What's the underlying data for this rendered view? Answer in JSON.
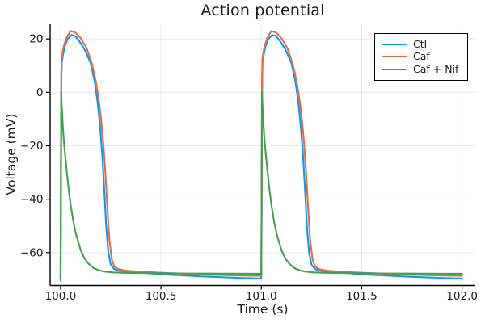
{
  "chart_data": {
    "type": "line",
    "title": "Action potential",
    "xlabel": "Time (s)",
    "ylabel": "Voltage (mV)",
    "xlim": [
      99.948,
      102.066
    ],
    "ylim": [
      -72.3,
      25.5
    ],
    "xticks": [
      100.0,
      100.5,
      101.0,
      101.5,
      102.0
    ],
    "xtick_labels": [
      "100.0",
      "100.5",
      "101.0",
      "101.5",
      "102.0"
    ],
    "yticks": [
      20,
      0,
      -20,
      -40,
      -60
    ],
    "ytick_labels": [
      "20",
      "0",
      "−20",
      "−40",
      "−60"
    ],
    "grid": true,
    "grid_color": "rgba(0,0,0,0.08)",
    "axis_color": "#000000",
    "text_color": "#1a1a1a",
    "legend": {
      "position": "top-right",
      "border_color": "#000000",
      "background": "#ffffff"
    },
    "series": [
      {
        "name": "Ctl",
        "color": "#009AFA",
        "points": [
          [
            100.0,
            -70.5
          ],
          [
            100.002,
            -35
          ],
          [
            100.004,
            4
          ],
          [
            100.006,
            11
          ],
          [
            100.012,
            14
          ],
          [
            100.02,
            17
          ],
          [
            100.035,
            20
          ],
          [
            100.055,
            21.5
          ],
          [
            100.075,
            21
          ],
          [
            100.095,
            19
          ],
          [
            100.12,
            16
          ],
          [
            100.15,
            11
          ],
          [
            100.17,
            4
          ],
          [
            100.185,
            -4
          ],
          [
            100.198,
            -14
          ],
          [
            100.208,
            -24
          ],
          [
            100.218,
            -37
          ],
          [
            100.228,
            -51
          ],
          [
            100.238,
            -60
          ],
          [
            100.25,
            -64.5
          ],
          [
            100.265,
            -66
          ],
          [
            100.285,
            -66.7
          ],
          [
            100.32,
            -67
          ],
          [
            100.4,
            -67.5
          ],
          [
            100.5,
            -68.1
          ],
          [
            100.6,
            -68.5
          ],
          [
            100.7,
            -68.9
          ],
          [
            100.8,
            -69.2
          ],
          [
            100.9,
            -69.5
          ],
          [
            100.999,
            -69.7
          ],
          [
            101.0,
            -69.7
          ],
          [
            101.002,
            -35
          ],
          [
            101.004,
            4
          ],
          [
            101.006,
            11
          ],
          [
            101.012,
            14
          ],
          [
            101.02,
            17
          ],
          [
            101.035,
            20
          ],
          [
            101.055,
            21.5
          ],
          [
            101.075,
            21
          ],
          [
            101.095,
            19
          ],
          [
            101.12,
            16
          ],
          [
            101.15,
            11
          ],
          [
            101.17,
            4
          ],
          [
            101.185,
            -4
          ],
          [
            101.198,
            -14
          ],
          [
            101.208,
            -24
          ],
          [
            101.218,
            -37
          ],
          [
            101.228,
            -51
          ],
          [
            101.238,
            -60
          ],
          [
            101.25,
            -64.5
          ],
          [
            101.265,
            -66
          ],
          [
            101.285,
            -66.7
          ],
          [
            101.32,
            -67
          ],
          [
            101.4,
            -67.5
          ],
          [
            101.5,
            -68.1
          ],
          [
            101.6,
            -68.5
          ],
          [
            101.7,
            -68.9
          ],
          [
            101.8,
            -69.2
          ],
          [
            101.9,
            -69.5
          ],
          [
            102.0,
            -69.7
          ]
        ]
      },
      {
        "name": "Caf",
        "color": "#E36E46",
        "points": [
          [
            100.0,
            -70.0
          ],
          [
            100.002,
            -30
          ],
          [
            100.004,
            7
          ],
          [
            100.006,
            13
          ],
          [
            100.015,
            17
          ],
          [
            100.03,
            20.5
          ],
          [
            100.05,
            23
          ],
          [
            100.075,
            22.3
          ],
          [
            100.1,
            20.3
          ],
          [
            100.13,
            16.5
          ],
          [
            100.155,
            11
          ],
          [
            100.175,
            4.5
          ],
          [
            100.19,
            -2.5
          ],
          [
            100.202,
            -10
          ],
          [
            100.213,
            -19
          ],
          [
            100.223,
            -30
          ],
          [
            100.233,
            -43
          ],
          [
            100.243,
            -55
          ],
          [
            100.255,
            -62.5
          ],
          [
            100.268,
            -65.3
          ],
          [
            100.29,
            -66.2
          ],
          [
            100.33,
            -66.8
          ],
          [
            100.42,
            -67.2
          ],
          [
            100.5,
            -67.5
          ],
          [
            100.65,
            -68.0
          ],
          [
            100.8,
            -68.4
          ],
          [
            100.9,
            -68.6
          ],
          [
            100.999,
            -68.7
          ],
          [
            101.0,
            -68.7
          ],
          [
            101.002,
            -30
          ],
          [
            101.004,
            7
          ],
          [
            101.006,
            13
          ],
          [
            101.015,
            17
          ],
          [
            101.03,
            20.5
          ],
          [
            101.05,
            23
          ],
          [
            101.075,
            22.3
          ],
          [
            101.1,
            20.3
          ],
          [
            101.13,
            16.5
          ],
          [
            101.155,
            11
          ],
          [
            101.175,
            4.5
          ],
          [
            101.19,
            -2.5
          ],
          [
            101.202,
            -10
          ],
          [
            101.213,
            -19
          ],
          [
            101.223,
            -30
          ],
          [
            101.233,
            -43
          ],
          [
            101.243,
            -55
          ],
          [
            101.255,
            -62.5
          ],
          [
            101.268,
            -65.3
          ],
          [
            101.29,
            -66.2
          ],
          [
            101.33,
            -66.8
          ],
          [
            101.42,
            -67.2
          ],
          [
            101.5,
            -67.5
          ],
          [
            101.65,
            -68.0
          ],
          [
            101.8,
            -68.4
          ],
          [
            101.9,
            -68.6
          ],
          [
            102.0,
            -68.7
          ]
        ]
      },
      {
        "name": "Caf + Nif",
        "color": "#3DA44D",
        "points": [
          [
            100.0,
            -69.5
          ],
          [
            100.0015,
            -40
          ],
          [
            100.003,
            0
          ],
          [
            100.006,
            -5
          ],
          [
            100.01,
            -11
          ],
          [
            100.015,
            -17
          ],
          [
            100.022,
            -23
          ],
          [
            100.03,
            -29
          ],
          [
            100.04,
            -36
          ],
          [
            100.05,
            -42
          ],
          [
            100.065,
            -49
          ],
          [
            100.08,
            -54
          ],
          [
            100.1,
            -59
          ],
          [
            100.12,
            -62.3
          ],
          [
            100.14,
            -64.2
          ],
          [
            100.165,
            -65.8
          ],
          [
            100.19,
            -66.6
          ],
          [
            100.22,
            -67.1
          ],
          [
            100.26,
            -67.4
          ],
          [
            100.32,
            -67.55
          ],
          [
            100.4,
            -67.65
          ],
          [
            100.5,
            -67.7
          ],
          [
            100.65,
            -67.8
          ],
          [
            100.8,
            -67.85
          ],
          [
            100.999,
            -67.9
          ],
          [
            101.0,
            -67.9
          ],
          [
            101.0015,
            -40
          ],
          [
            101.003,
            0
          ],
          [
            101.006,
            -5
          ],
          [
            101.01,
            -11
          ],
          [
            101.015,
            -17
          ],
          [
            101.022,
            -23
          ],
          [
            101.03,
            -29
          ],
          [
            101.04,
            -36
          ],
          [
            101.05,
            -42
          ],
          [
            101.065,
            -49
          ],
          [
            101.08,
            -54
          ],
          [
            101.1,
            -59
          ],
          [
            101.12,
            -62.3
          ],
          [
            101.14,
            -64.2
          ],
          [
            101.165,
            -65.8
          ],
          [
            101.19,
            -66.6
          ],
          [
            101.22,
            -67.1
          ],
          [
            101.26,
            -67.4
          ],
          [
            101.32,
            -67.55
          ],
          [
            101.4,
            -67.65
          ],
          [
            101.5,
            -67.7
          ],
          [
            101.65,
            -67.8
          ],
          [
            101.8,
            -67.85
          ],
          [
            102.0,
            -67.9
          ]
        ]
      }
    ]
  }
}
